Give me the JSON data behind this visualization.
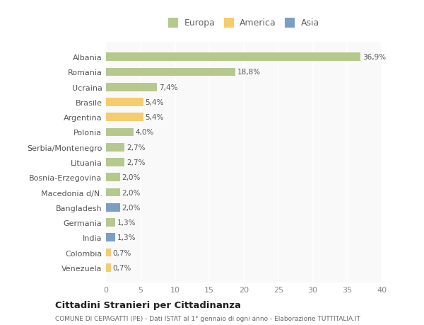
{
  "countries": [
    "Albania",
    "Romania",
    "Ucraina",
    "Brasile",
    "Argentina",
    "Polonia",
    "Serbia/Montenegro",
    "Lituania",
    "Bosnia-Erzegovina",
    "Macedonia d/N.",
    "Bangladesh",
    "Germania",
    "India",
    "Colombia",
    "Venezuela"
  ],
  "values": [
    36.9,
    18.8,
    7.4,
    5.4,
    5.4,
    4.0,
    2.7,
    2.7,
    2.0,
    2.0,
    2.0,
    1.3,
    1.3,
    0.7,
    0.7
  ],
  "labels": [
    "36,9%",
    "18,8%",
    "7,4%",
    "5,4%",
    "5,4%",
    "4,0%",
    "2,7%",
    "2,7%",
    "2,0%",
    "2,0%",
    "2,0%",
    "1,3%",
    "1,3%",
    "0,7%",
    "0,7%"
  ],
  "continent": [
    "Europa",
    "Europa",
    "Europa",
    "America",
    "America",
    "Europa",
    "Europa",
    "Europa",
    "Europa",
    "Europa",
    "Asia",
    "Europa",
    "Asia",
    "America",
    "America"
  ],
  "color_europa": "#b5c98e",
  "color_america": "#f5cc6e",
  "color_asia": "#7a9fc2",
  "background_color": "#ffffff",
  "plot_bg_color": "#f9f9f9",
  "title": "Cittadini Stranieri per Cittadinanza",
  "subtitle": "COMUNE DI CEPAGATTI (PE) - Dati ISTAT al 1° gennaio di ogni anno - Elaborazione TUTTITALIA.IT",
  "xlim": [
    0,
    40
  ],
  "xticks": [
    0,
    5,
    10,
    15,
    20,
    25,
    30,
    35,
    40
  ],
  "legend_labels": [
    "Europa",
    "America",
    "Asia"
  ],
  "legend_colors": [
    "#b5c98e",
    "#f5cc6e",
    "#7a9fc2"
  ]
}
